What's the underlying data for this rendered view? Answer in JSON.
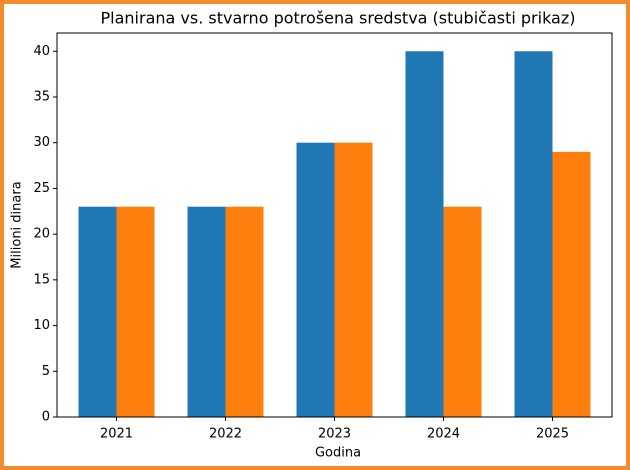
{
  "chart_data": {
    "type": "bar",
    "title": "Planirana vs. stvarno potrošena sredstva (stubičasti prikaz)",
    "x_label": "Godina",
    "y_label": "Milioni dinara",
    "categories": [
      "2021",
      "2022",
      "2023",
      "2024",
      "2025"
    ],
    "series": [
      {
        "color": "#1f77b4",
        "values": [
          23,
          23,
          30,
          40,
          40
        ]
      },
      {
        "color": "#ff7f0e",
        "values": [
          23,
          23,
          30,
          23,
          29
        ]
      }
    ],
    "ylim": [
      0,
      42
    ],
    "yticks": [
      0,
      5,
      10,
      15,
      20,
      25,
      30,
      35,
      40
    ],
    "grid": false
  }
}
